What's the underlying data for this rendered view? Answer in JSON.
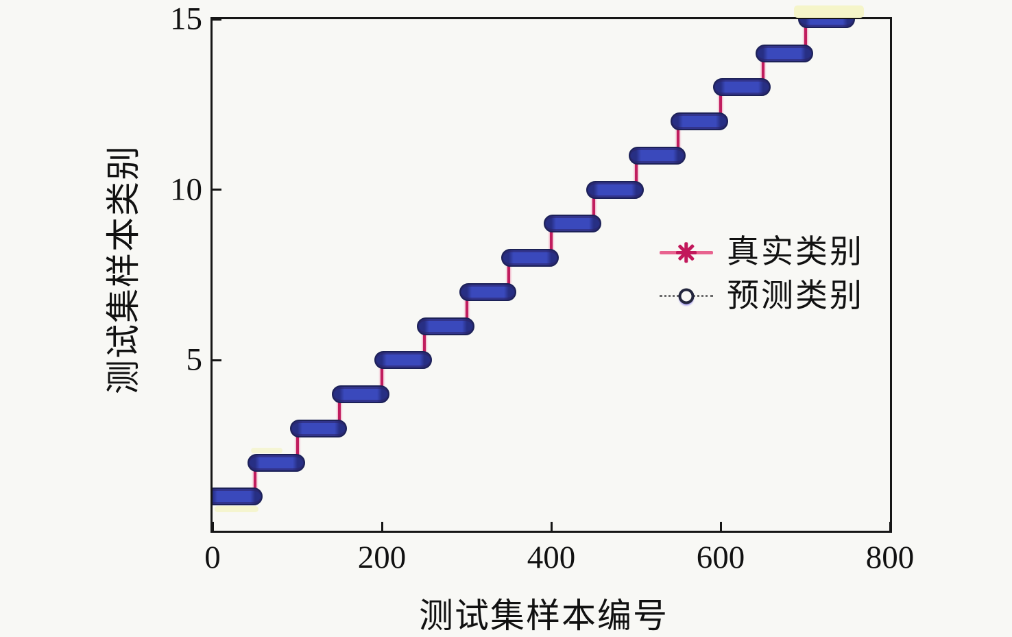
{
  "figure": {
    "background_color": "#f8f8f5",
    "frame_color": "#161616"
  },
  "chart_data": {
    "type": "line",
    "title": "",
    "xlabel": "测试集样本编号",
    "ylabel": "测试集样本类别",
    "xlim": [
      0,
      800
    ],
    "ylim": [
      0,
      15
    ],
    "x_ticks": [
      0,
      200,
      400,
      600,
      800
    ],
    "y_ticks": [
      5,
      10,
      15
    ],
    "grid": false,
    "legend_position": "middle-right",
    "num_classes": 15,
    "samples_per_class": 50,
    "total_samples": 750,
    "series": [
      {
        "name": "真实类别",
        "type": "step",
        "line_style": "solid",
        "line_color": "#e8638f",
        "marker": "asterisk",
        "marker_color": "#c2185b",
        "description": "true class label: class = ceil(sample/50), staircase from 1 to 15"
      },
      {
        "name": "预测类别",
        "type": "step",
        "line_style": "dotted",
        "line_color": "#6a6a6a",
        "marker": "circle",
        "marker_face_color": "#3a49bc",
        "marker_edge_color": "#1c2158",
        "description": "predicted class label: identical staircase, overlapping the true labels"
      }
    ],
    "steps": [
      {
        "class": 1,
        "x_start": 0,
        "x_end": 50
      },
      {
        "class": 2,
        "x_start": 50,
        "x_end": 100
      },
      {
        "class": 3,
        "x_start": 100,
        "x_end": 150
      },
      {
        "class": 4,
        "x_start": 150,
        "x_end": 200
      },
      {
        "class": 5,
        "x_start": 200,
        "x_end": 250
      },
      {
        "class": 6,
        "x_start": 250,
        "x_end": 300
      },
      {
        "class": 7,
        "x_start": 300,
        "x_end": 350
      },
      {
        "class": 8,
        "x_start": 350,
        "x_end": 400
      },
      {
        "class": 9,
        "x_start": 400,
        "x_end": 450
      },
      {
        "class": 10,
        "x_start": 450,
        "x_end": 500
      },
      {
        "class": 11,
        "x_start": 500,
        "x_end": 550
      },
      {
        "class": 12,
        "x_start": 550,
        "x_end": 600
      },
      {
        "class": 13,
        "x_start": 600,
        "x_end": 650
      },
      {
        "class": 14,
        "x_start": 650,
        "x_end": 700
      },
      {
        "class": 15,
        "x_start": 700,
        "x_end": 750
      }
    ],
    "colors": {
      "pill_fill": "#3a49bc",
      "pill_edge": "#1c2158",
      "connector": "#c01d5e",
      "connector_glow": "#e8638f"
    }
  },
  "legend": {
    "items": [
      {
        "label": "真实类别"
      },
      {
        "label": "预测类别"
      }
    ]
  }
}
